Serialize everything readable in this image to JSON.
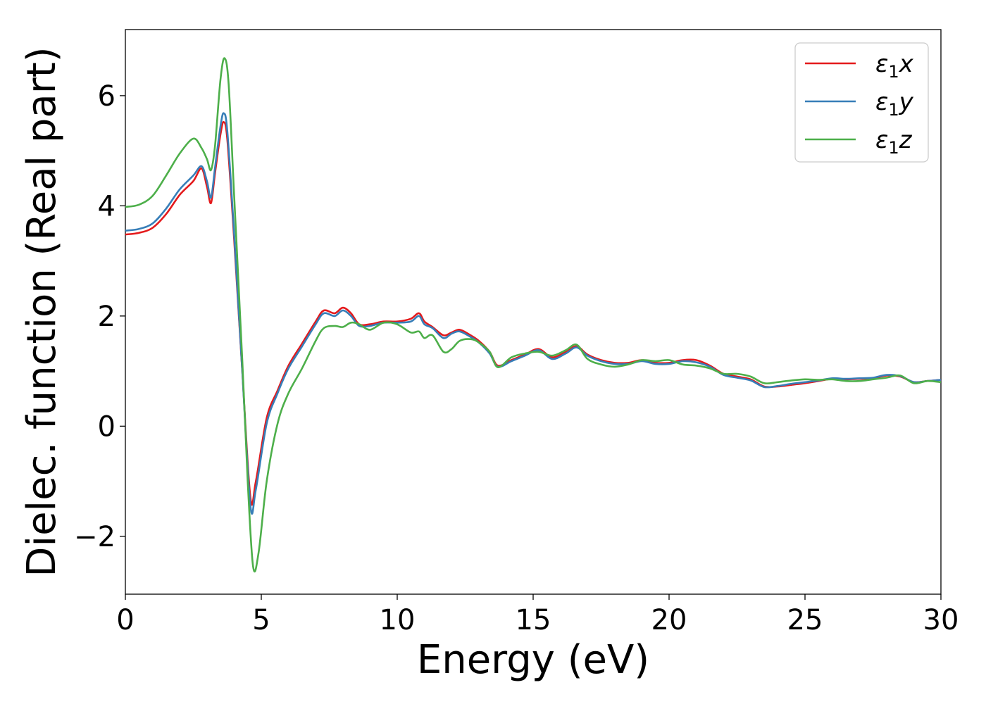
{
  "chart_data": {
    "type": "line",
    "title": "",
    "xlabel": "Energy (eV)",
    "ylabel": "Dielec. function (Real part)",
    "xlim": [
      0,
      30
    ],
    "ylim": [
      -3.05,
      7.2
    ],
    "xticks": [
      0,
      5,
      10,
      15,
      20,
      25,
      30
    ],
    "xtick_labels": [
      "0",
      "5",
      "10",
      "15",
      "20",
      "25",
      "30"
    ],
    "yticks": [
      -2,
      0,
      2,
      4,
      6
    ],
    "ytick_labels": [
      "−2",
      "0",
      "2",
      "4",
      "6"
    ],
    "grid": false,
    "legend_position": "top-right",
    "series": [
      {
        "name": "ε₁x",
        "legend": {
          "base": "ε",
          "sub": "1",
          "var": "x"
        },
        "color": "#e41a1c",
        "points": [
          [
            0,
            3.48
          ],
          [
            0.5,
            3.51
          ],
          [
            1.0,
            3.6
          ],
          [
            1.5,
            3.85
          ],
          [
            2.0,
            4.2
          ],
          [
            2.5,
            4.45
          ],
          [
            2.8,
            4.68
          ],
          [
            3.0,
            4.35
          ],
          [
            3.15,
            4.05
          ],
          [
            3.3,
            4.6
          ],
          [
            3.5,
            5.3
          ],
          [
            3.62,
            5.52
          ],
          [
            3.75,
            5.2
          ],
          [
            4.0,
            3.4
          ],
          [
            4.3,
            1.0
          ],
          [
            4.6,
            -1.3
          ],
          [
            4.8,
            -1.0
          ],
          [
            5.2,
            0.15
          ],
          [
            5.6,
            0.65
          ],
          [
            6.0,
            1.1
          ],
          [
            6.5,
            1.5
          ],
          [
            7.0,
            1.9
          ],
          [
            7.3,
            2.1
          ],
          [
            7.7,
            2.05
          ],
          [
            8.0,
            2.15
          ],
          [
            8.3,
            2.05
          ],
          [
            8.6,
            1.85
          ],
          [
            9.0,
            1.85
          ],
          [
            9.5,
            1.9
          ],
          [
            10.0,
            1.9
          ],
          [
            10.5,
            1.95
          ],
          [
            10.8,
            2.05
          ],
          [
            11.0,
            1.9
          ],
          [
            11.3,
            1.8
          ],
          [
            11.7,
            1.65
          ],
          [
            12.0,
            1.7
          ],
          [
            12.3,
            1.75
          ],
          [
            12.7,
            1.65
          ],
          [
            13.0,
            1.55
          ],
          [
            13.4,
            1.35
          ],
          [
            13.7,
            1.1
          ],
          [
            14.2,
            1.2
          ],
          [
            14.7,
            1.3
          ],
          [
            15.2,
            1.4
          ],
          [
            15.7,
            1.25
          ],
          [
            16.2,
            1.35
          ],
          [
            16.6,
            1.45
          ],
          [
            17.0,
            1.3
          ],
          [
            17.5,
            1.2
          ],
          [
            18.0,
            1.15
          ],
          [
            18.5,
            1.15
          ],
          [
            19.0,
            1.2
          ],
          [
            19.5,
            1.15
          ],
          [
            20.0,
            1.15
          ],
          [
            20.5,
            1.2
          ],
          [
            21.0,
            1.2
          ],
          [
            21.5,
            1.1
          ],
          [
            22.0,
            0.95
          ],
          [
            22.5,
            0.9
          ],
          [
            23.0,
            0.85
          ],
          [
            23.5,
            0.72
          ],
          [
            24.0,
            0.72
          ],
          [
            24.5,
            0.75
          ],
          [
            25.0,
            0.78
          ],
          [
            25.5,
            0.82
          ],
          [
            26.0,
            0.86
          ],
          [
            26.5,
            0.85
          ],
          [
            27.0,
            0.86
          ],
          [
            27.5,
            0.87
          ],
          [
            28.0,
            0.92
          ],
          [
            28.5,
            0.9
          ],
          [
            29.0,
            0.8
          ],
          [
            29.5,
            0.82
          ],
          [
            30.0,
            0.84
          ]
        ]
      },
      {
        "name": "ε₁y",
        "legend": {
          "base": "ε",
          "sub": "1",
          "var": "y"
        },
        "color": "#377eb8",
        "points": [
          [
            0,
            3.55
          ],
          [
            0.5,
            3.58
          ],
          [
            1.0,
            3.68
          ],
          [
            1.5,
            3.95
          ],
          [
            2.0,
            4.3
          ],
          [
            2.5,
            4.55
          ],
          [
            2.8,
            4.72
          ],
          [
            3.0,
            4.45
          ],
          [
            3.15,
            4.15
          ],
          [
            3.3,
            4.7
          ],
          [
            3.5,
            5.45
          ],
          [
            3.62,
            5.68
          ],
          [
            3.75,
            5.35
          ],
          [
            4.0,
            3.5
          ],
          [
            4.3,
            1.0
          ],
          [
            4.6,
            -1.45
          ],
          [
            4.8,
            -1.15
          ],
          [
            5.2,
            0.05
          ],
          [
            5.6,
            0.6
          ],
          [
            6.0,
            1.05
          ],
          [
            6.5,
            1.45
          ],
          [
            7.0,
            1.85
          ],
          [
            7.3,
            2.05
          ],
          [
            7.7,
            2.0
          ],
          [
            8.0,
            2.1
          ],
          [
            8.3,
            2.0
          ],
          [
            8.6,
            1.82
          ],
          [
            9.0,
            1.82
          ],
          [
            9.5,
            1.88
          ],
          [
            10.0,
            1.88
          ],
          [
            10.5,
            1.9
          ],
          [
            10.8,
            2.0
          ],
          [
            11.0,
            1.85
          ],
          [
            11.3,
            1.78
          ],
          [
            11.7,
            1.6
          ],
          [
            12.0,
            1.68
          ],
          [
            12.3,
            1.72
          ],
          [
            12.7,
            1.62
          ],
          [
            13.0,
            1.52
          ],
          [
            13.4,
            1.32
          ],
          [
            13.7,
            1.08
          ],
          [
            14.2,
            1.18
          ],
          [
            14.7,
            1.28
          ],
          [
            15.2,
            1.38
          ],
          [
            15.7,
            1.22
          ],
          [
            16.2,
            1.32
          ],
          [
            16.6,
            1.43
          ],
          [
            17.0,
            1.28
          ],
          [
            17.5,
            1.18
          ],
          [
            18.0,
            1.13
          ],
          [
            18.5,
            1.13
          ],
          [
            19.0,
            1.18
          ],
          [
            19.5,
            1.13
          ],
          [
            20.0,
            1.13
          ],
          [
            20.5,
            1.18
          ],
          [
            21.0,
            1.16
          ],
          [
            21.5,
            1.08
          ],
          [
            22.0,
            0.93
          ],
          [
            22.5,
            0.88
          ],
          [
            23.0,
            0.83
          ],
          [
            23.5,
            0.71
          ],
          [
            24.0,
            0.73
          ],
          [
            24.5,
            0.77
          ],
          [
            25.0,
            0.8
          ],
          [
            25.5,
            0.83
          ],
          [
            26.0,
            0.87
          ],
          [
            26.5,
            0.86
          ],
          [
            27.0,
            0.87
          ],
          [
            27.5,
            0.88
          ],
          [
            28.0,
            0.93
          ],
          [
            28.5,
            0.91
          ],
          [
            29.0,
            0.8
          ],
          [
            29.5,
            0.82
          ],
          [
            30.0,
            0.84
          ]
        ]
      },
      {
        "name": "ε₁z",
        "legend": {
          "base": "ε",
          "sub": "1",
          "var": "z"
        },
        "color": "#4daf4a",
        "points": [
          [
            0,
            3.98
          ],
          [
            0.5,
            4.02
          ],
          [
            1.0,
            4.18
          ],
          [
            1.5,
            4.55
          ],
          [
            2.0,
            4.95
          ],
          [
            2.5,
            5.22
          ],
          [
            2.8,
            5.05
          ],
          [
            3.0,
            4.85
          ],
          [
            3.15,
            4.65
          ],
          [
            3.3,
            5.1
          ],
          [
            3.5,
            6.3
          ],
          [
            3.65,
            6.68
          ],
          [
            3.8,
            6.2
          ],
          [
            4.0,
            4.2
          ],
          [
            4.3,
            1.2
          ],
          [
            4.5,
            -1.0
          ],
          [
            4.7,
            -2.55
          ],
          [
            4.9,
            -2.3
          ],
          [
            5.2,
            -1.0
          ],
          [
            5.6,
            0.05
          ],
          [
            6.0,
            0.6
          ],
          [
            6.5,
            1.05
          ],
          [
            7.0,
            1.55
          ],
          [
            7.3,
            1.78
          ],
          [
            7.7,
            1.82
          ],
          [
            8.0,
            1.8
          ],
          [
            8.3,
            1.88
          ],
          [
            8.6,
            1.85
          ],
          [
            9.0,
            1.75
          ],
          [
            9.5,
            1.88
          ],
          [
            10.0,
            1.85
          ],
          [
            10.5,
            1.7
          ],
          [
            10.8,
            1.72
          ],
          [
            11.0,
            1.6
          ],
          [
            11.3,
            1.65
          ],
          [
            11.7,
            1.35
          ],
          [
            12.0,
            1.4
          ],
          [
            12.3,
            1.55
          ],
          [
            12.7,
            1.58
          ],
          [
            13.0,
            1.52
          ],
          [
            13.4,
            1.35
          ],
          [
            13.7,
            1.07
          ],
          [
            14.2,
            1.25
          ],
          [
            14.7,
            1.32
          ],
          [
            15.2,
            1.35
          ],
          [
            15.7,
            1.28
          ],
          [
            16.2,
            1.38
          ],
          [
            16.6,
            1.48
          ],
          [
            17.0,
            1.22
          ],
          [
            17.5,
            1.12
          ],
          [
            18.0,
            1.08
          ],
          [
            18.5,
            1.12
          ],
          [
            19.0,
            1.2
          ],
          [
            19.5,
            1.18
          ],
          [
            20.0,
            1.2
          ],
          [
            20.5,
            1.12
          ],
          [
            21.0,
            1.1
          ],
          [
            21.5,
            1.05
          ],
          [
            22.0,
            0.95
          ],
          [
            22.5,
            0.95
          ],
          [
            23.0,
            0.9
          ],
          [
            23.5,
            0.78
          ],
          [
            24.0,
            0.8
          ],
          [
            24.5,
            0.83
          ],
          [
            25.0,
            0.85
          ],
          [
            25.5,
            0.84
          ],
          [
            26.0,
            0.85
          ],
          [
            26.5,
            0.82
          ],
          [
            27.0,
            0.82
          ],
          [
            27.5,
            0.85
          ],
          [
            28.0,
            0.88
          ],
          [
            28.5,
            0.92
          ],
          [
            29.0,
            0.78
          ],
          [
            29.5,
            0.82
          ],
          [
            30.0,
            0.8
          ]
        ]
      }
    ]
  }
}
